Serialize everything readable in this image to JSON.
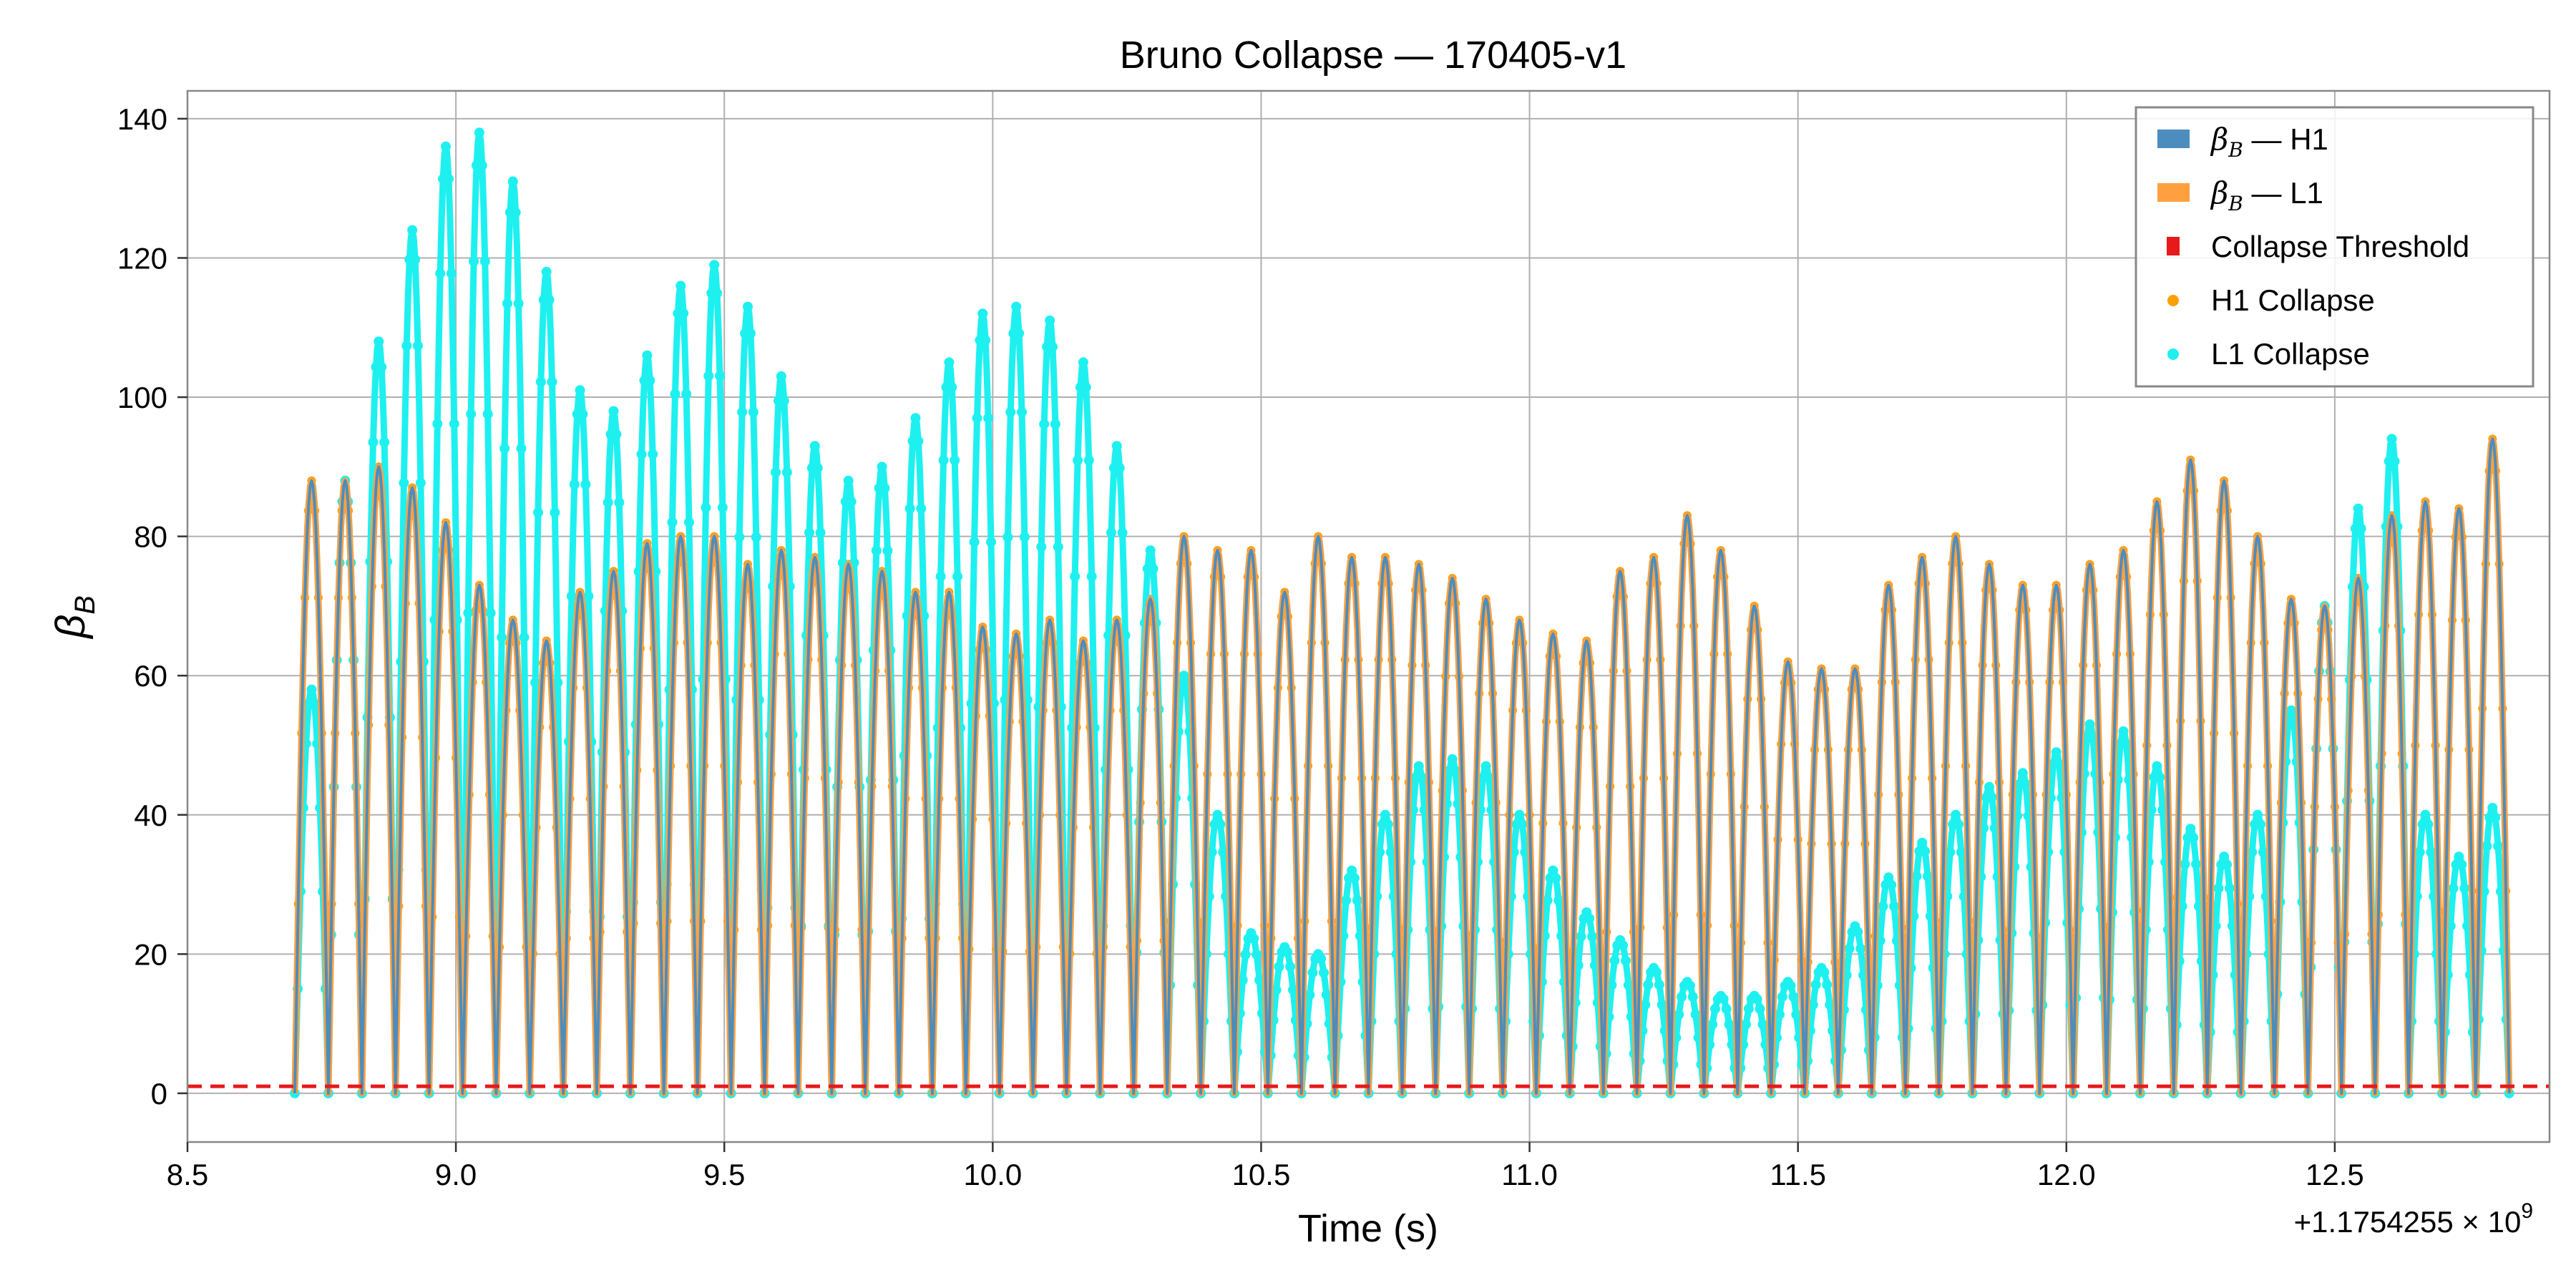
{
  "chart_data": {
    "type": "line",
    "title": "Bruno Collapse — 170405-v1",
    "xlabel": "Time (s)",
    "ylabel_base": "β",
    "ylabel_sub": "B",
    "x_offset_label": "+1.1754255 × 10",
    "x_offset_exp": "9",
    "xlim": [
      8.5,
      12.9
    ],
    "ylim": [
      -7,
      144
    ],
    "x_ticks": [
      8.5,
      9.0,
      9.5,
      10.0,
      10.5,
      11.0,
      11.5,
      12.0,
      12.5
    ],
    "x_tick_labels": [
      "8.5",
      "9.0",
      "9.5",
      "10.0",
      "10.5",
      "11.0",
      "11.5",
      "12.0",
      "12.5"
    ],
    "y_ticks": [
      0,
      20,
      40,
      60,
      80,
      100,
      120,
      140
    ],
    "y_tick_labels": [
      "0",
      "20",
      "40",
      "60",
      "80",
      "100",
      "120",
      "140"
    ],
    "grid": true,
    "legend_position": "top-right",
    "threshold": {
      "name": "Collapse Threshold",
      "value": 1.0,
      "color": "#e8191b"
    },
    "series": [
      {
        "name": "β — H1",
        "name_base": "β",
        "name_sub": "B",
        "name_tail": " — H1",
        "color": "#4c8dbd",
        "lobe_start": 8.7,
        "lobe_end": 12.7,
        "lobe_width": 0.0625,
        "peaks": [
          88,
          88,
          90,
          87,
          82,
          73,
          68,
          65,
          72,
          75,
          79,
          80,
          80,
          76,
          78,
          77,
          76,
          75,
          72,
          72,
          67,
          66,
          68,
          65,
          68,
          71,
          80,
          78,
          78,
          72,
          80,
          77,
          77,
          76,
          74,
          71,
          68,
          66,
          65,
          75,
          77,
          83,
          78,
          70,
          62,
          61,
          61,
          73,
          77,
          80,
          76,
          73,
          73,
          76,
          78,
          85,
          91,
          88,
          80,
          71,
          70,
          74,
          83,
          85,
          84,
          94
        ]
      },
      {
        "name": "β — L1",
        "name_base": "β",
        "name_sub": "B",
        "name_tail": " — L1",
        "color": "#ffa040",
        "lobe_start": 8.7,
        "lobe_end": 12.7,
        "lobe_width": 0.0625,
        "peaks": [
          88,
          88,
          90,
          87,
          82,
          73,
          68,
          65,
          72,
          75,
          79,
          80,
          80,
          76,
          78,
          77,
          76,
          75,
          72,
          72,
          67,
          66,
          68,
          65,
          68,
          71,
          80,
          78,
          78,
          72,
          80,
          77,
          77,
          76,
          74,
          71,
          68,
          66,
          65,
          75,
          77,
          83,
          78,
          70,
          62,
          61,
          61,
          73,
          77,
          80,
          76,
          73,
          73,
          76,
          78,
          85,
          91,
          88,
          80,
          71,
          70,
          74,
          83,
          85,
          84,
          94
        ]
      },
      {
        "name": "H1 Collapse",
        "color": "#ff9f00",
        "marker": "dot",
        "peaks": [
          88,
          88,
          90,
          87,
          82,
          73,
          68,
          65,
          72,
          75,
          79,
          80,
          80,
          76,
          78,
          77,
          76,
          75,
          72,
          72,
          67,
          66,
          68,
          65,
          68,
          71,
          80,
          78,
          78,
          72,
          80,
          77,
          77,
          76,
          74,
          71,
          68,
          66,
          65,
          75,
          77,
          83,
          78,
          70,
          62,
          61,
          61,
          73,
          77,
          80,
          76,
          73,
          73,
          76,
          78,
          85,
          91,
          88,
          80,
          71,
          70,
          74,
          83,
          85,
          84,
          94
        ]
      },
      {
        "name": "L1 Collapse",
        "color": "#1ef0f0",
        "marker": "dot",
        "lobe_start": 8.7,
        "lobe_end": 12.7,
        "lobe_width": 0.0625,
        "peaks": [
          58,
          88,
          108,
          124,
          136,
          138,
          131,
          118,
          101,
          98,
          106,
          116,
          119,
          113,
          103,
          93,
          88,
          90,
          97,
          105,
          112,
          113,
          111,
          105,
          93,
          78,
          60,
          40,
          23,
          21,
          20,
          32,
          40,
          47,
          48,
          47,
          40,
          32,
          26,
          22,
          18,
          16,
          14,
          14,
          16,
          18,
          24,
          31,
          36,
          40,
          44,
          46,
          49,
          53,
          52,
          47,
          38,
          34,
          40,
          55,
          70,
          84,
          94,
          40,
          34,
          41
        ]
      }
    ]
  }
}
